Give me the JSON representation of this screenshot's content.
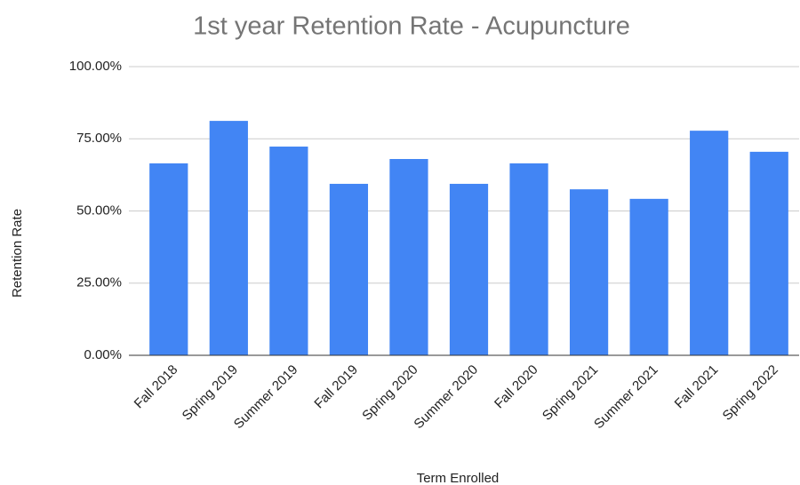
{
  "chart_data": {
    "type": "bar",
    "title": "1st year Retention Rate - Acupuncture",
    "x_label": "Term Enrolled",
    "y_label": "Retention Rate",
    "categories": [
      "Fall 2018",
      "Spring 2019",
      "Summer 2019",
      "Fall 2019",
      "Spring 2020",
      "Summer 2020",
      "Fall 2020",
      "Spring 2021",
      "Summer 2021",
      "Fall 2021",
      "Spring 2022"
    ],
    "values": [
      66.5,
      81.2,
      72.3,
      59.4,
      68,
      59.4,
      66.5,
      57.5,
      54.2,
      77.8,
      70.5
    ],
    "color": "#4285f4",
    "ylim": [
      0,
      100
    ],
    "yticks": [
      {
        "value": 0,
        "label": "0.00%"
      },
      {
        "value": 25,
        "label": "25.00%"
      },
      {
        "value": 50,
        "label": "50.00%"
      },
      {
        "value": 75,
        "label": "75.00%"
      },
      {
        "value": 100,
        "label": "100.00%"
      }
    ],
    "grid": true
  }
}
